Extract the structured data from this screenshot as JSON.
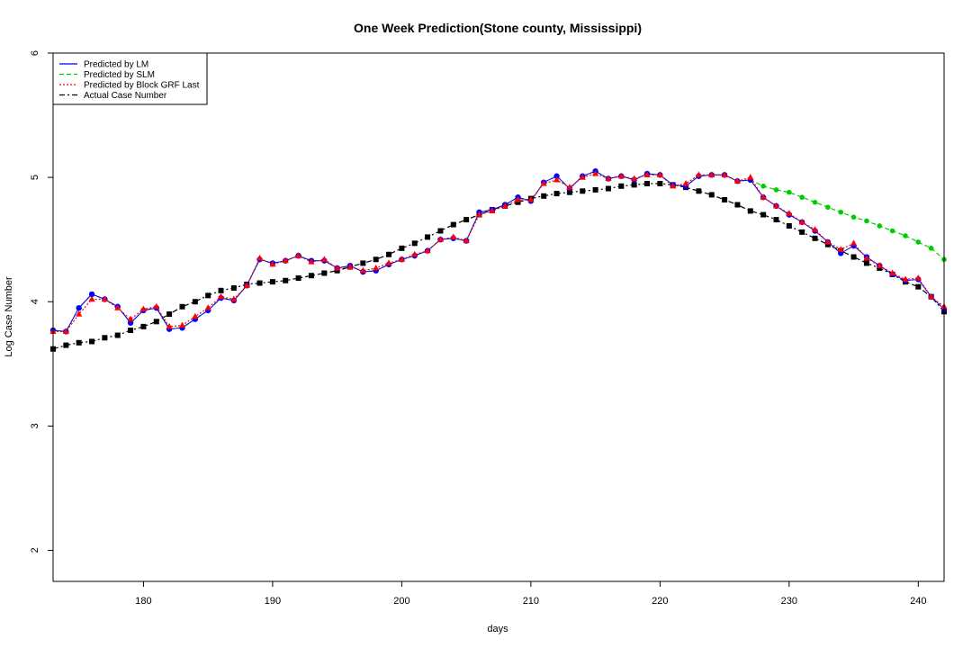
{
  "chart_data": {
    "type": "line",
    "title": "One Week Prediction(Stone county, Mississippi)",
    "xlabel": "days",
    "ylabel": "Log Case Number",
    "xlim": [
      173,
      242
    ],
    "ylim": [
      1.75,
      6
    ],
    "x_ticks": [
      180,
      190,
      200,
      210,
      220,
      230,
      240
    ],
    "y_ticks": [
      2,
      3,
      4,
      5,
      6
    ],
    "grid": false,
    "legend_position": "top-left",
    "colors": {
      "lm": "#0000ff",
      "slm": "#00cd00",
      "grf": "#ff0000",
      "actual": "#000000"
    },
    "x": [
      173,
      174,
      175,
      176,
      177,
      178,
      179,
      180,
      181,
      182,
      183,
      184,
      185,
      186,
      187,
      188,
      189,
      190,
      191,
      192,
      193,
      194,
      195,
      196,
      197,
      198,
      199,
      200,
      201,
      202,
      203,
      204,
      205,
      206,
      207,
      208,
      209,
      210,
      211,
      212,
      213,
      214,
      215,
      216,
      217,
      218,
      219,
      220,
      221,
      222,
      223,
      224,
      225,
      226,
      227,
      228,
      229,
      230,
      231,
      232,
      233,
      234,
      235,
      236,
      237,
      238,
      239,
      240,
      241,
      242
    ],
    "series": [
      {
        "name": "Predicted by LM",
        "key": "lm",
        "values": [
          3.77,
          3.76,
          3.95,
          4.06,
          4.02,
          3.96,
          3.83,
          3.93,
          3.95,
          3.78,
          3.79,
          3.86,
          3.93,
          4.03,
          4.01,
          4.13,
          4.34,
          4.31,
          4.33,
          4.37,
          4.33,
          4.33,
          4.27,
          4.29,
          4.24,
          4.25,
          4.3,
          4.34,
          4.37,
          4.41,
          4.5,
          4.51,
          4.49,
          4.72,
          4.74,
          4.78,
          4.84,
          4.81,
          4.96,
          5.01,
          4.91,
          5.01,
          5.05,
          4.99,
          5.01,
          4.98,
          5.03,
          5.02,
          4.94,
          4.93,
          5.01,
          5.02,
          5.02,
          4.97,
          4.98,
          4.84,
          4.77,
          4.7,
          4.64,
          4.57,
          4.48,
          4.39,
          4.45,
          4.36,
          4.29,
          4.22,
          4.17,
          4.18,
          4.04,
          3.94
        ]
      },
      {
        "name": "Predicted by SLM",
        "key": "slm",
        "values": [
          3.77,
          3.76,
          3.95,
          4.06,
          4.02,
          3.96,
          3.83,
          3.93,
          3.95,
          3.78,
          3.79,
          3.86,
          3.93,
          4.03,
          4.01,
          4.13,
          4.34,
          4.31,
          4.33,
          4.37,
          4.33,
          4.33,
          4.27,
          4.29,
          4.24,
          4.25,
          4.3,
          4.34,
          4.37,
          4.41,
          4.5,
          4.51,
          4.49,
          4.72,
          4.74,
          4.78,
          4.84,
          4.81,
          4.96,
          5.01,
          4.91,
          5.01,
          5.05,
          4.99,
          5.01,
          4.98,
          5.03,
          5.02,
          4.94,
          4.93,
          5.01,
          5.02,
          5.02,
          4.97,
          4.98,
          4.93,
          4.9,
          4.88,
          4.84,
          4.8,
          4.76,
          4.72,
          4.68,
          4.65,
          4.61,
          4.57,
          4.53,
          4.48,
          4.43,
          4.34
        ]
      },
      {
        "name": "Predicted by Block GRF Last",
        "key": "grf",
        "values": [
          3.76,
          3.76,
          3.9,
          4.02,
          4.02,
          3.95,
          3.86,
          3.94,
          3.96,
          3.8,
          3.81,
          3.88,
          3.95,
          4.04,
          4.02,
          4.13,
          4.35,
          4.3,
          4.33,
          4.37,
          4.32,
          4.34,
          4.27,
          4.28,
          4.25,
          4.27,
          4.31,
          4.34,
          4.38,
          4.41,
          4.5,
          4.52,
          4.49,
          4.7,
          4.73,
          4.77,
          4.82,
          4.82,
          4.95,
          4.98,
          4.92,
          5.0,
          5.03,
          4.99,
          5.01,
          4.99,
          5.02,
          5.02,
          4.93,
          4.95,
          5.02,
          5.02,
          5.02,
          4.97,
          5.0,
          4.84,
          4.77,
          4.71,
          4.64,
          4.58,
          4.48,
          4.42,
          4.47,
          4.35,
          4.29,
          4.23,
          4.18,
          4.19,
          4.04,
          3.96
        ]
      },
      {
        "name": "Actual Case Number",
        "key": "actual",
        "values": [
          3.62,
          3.65,
          3.67,
          3.68,
          3.71,
          3.73,
          3.77,
          3.8,
          3.84,
          3.9,
          3.96,
          4.0,
          4.05,
          4.09,
          4.11,
          4.14,
          4.15,
          4.16,
          4.17,
          4.19,
          4.21,
          4.23,
          4.25,
          4.28,
          4.31,
          4.34,
          4.38,
          4.43,
          4.47,
          4.52,
          4.57,
          4.62,
          4.66,
          4.7,
          4.74,
          4.77,
          4.8,
          4.83,
          4.85,
          4.87,
          4.88,
          4.89,
          4.9,
          4.91,
          4.93,
          4.94,
          4.95,
          4.95,
          4.94,
          4.92,
          4.89,
          4.86,
          4.82,
          4.78,
          4.73,
          4.7,
          4.66,
          4.61,
          4.56,
          4.51,
          4.46,
          4.41,
          4.36,
          4.31,
          4.27,
          4.22,
          4.16,
          4.12,
          4.04,
          3.92
        ]
      }
    ]
  }
}
